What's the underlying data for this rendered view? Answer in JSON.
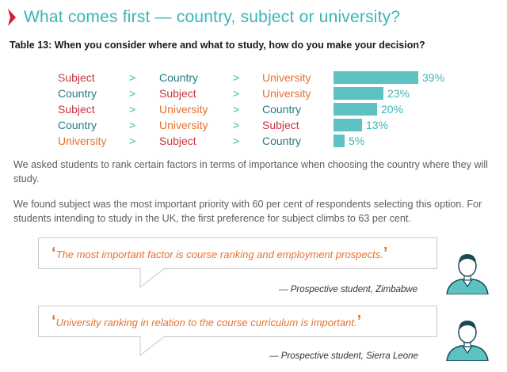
{
  "header": {
    "title": "What comes first — country, subject or university?"
  },
  "table": {
    "caption": "Table 13: When you consider where and what to study, how do you make your decision?"
  },
  "separator": ">",
  "colors": {
    "teal": "#3bb5b5",
    "bar": "#5ec2c2",
    "subject": "#cc3340",
    "country": "#217c83",
    "university": "#e8712c",
    "quote": "#e8712c"
  },
  "chart_data": {
    "type": "bar",
    "orientation": "horizontal",
    "categories": [
      [
        "Subject",
        "Country",
        "University"
      ],
      [
        "Country",
        "Subject",
        "University"
      ],
      [
        "Subject",
        "University",
        "Country"
      ],
      [
        "Country",
        "University",
        "Subject"
      ],
      [
        "University",
        "Subject",
        "Country"
      ]
    ],
    "values": [
      39,
      23,
      20,
      13,
      5
    ],
    "labels": [
      "39%",
      "23%",
      "20%",
      "13%",
      "5%"
    ],
    "xlim": [
      0,
      39
    ],
    "grid": false
  },
  "body": {
    "para1": "We asked students to rank certain factors in terms of importance when choosing the country where they will study.",
    "para2": "We found subject was the most important priority with 60 per cent of respondents selecting this option. For students intending to study in the UK, the first preference for subject climbs to 63 per cent."
  },
  "quotes": [
    {
      "text": "The most important factor is course ranking and employment prospects.",
      "attribution": "— Prospective student, Zimbabwe",
      "open_mark": "‘",
      "close_mark": "’"
    },
    {
      "text": "University ranking in relation to the course curriculum is important.",
      "attribution": "— Prospective student, Sierra Leone",
      "open_mark": "‘",
      "close_mark": "’"
    }
  ]
}
